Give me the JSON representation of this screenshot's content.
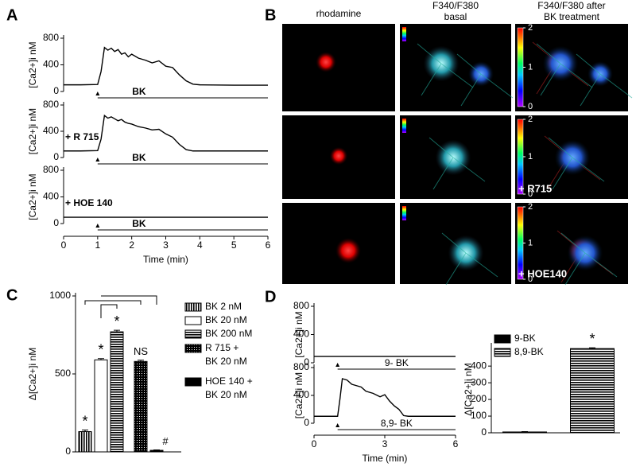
{
  "chart_data": [
    {
      "type": "line",
      "panel_label": "A",
      "ylabel": "[Ca2+]i nM",
      "xlim": [
        0,
        6
      ],
      "ylim": [
        0,
        800
      ],
      "yticks": [
        0,
        400,
        800
      ],
      "color": "#000000",
      "x": [
        0,
        0.5,
        1.0,
        1.1,
        1.2,
        1.3,
        1.4,
        1.5,
        1.6,
        1.7,
        1.8,
        1.9,
        2.0,
        2.2,
        2.4,
        2.6,
        2.8,
        3.0,
        3.2,
        3.4,
        3.6,
        3.8,
        4.0,
        5.0,
        6.0
      ],
      "y": [
        100,
        100,
        105,
        300,
        660,
        620,
        650,
        600,
        630,
        560,
        580,
        520,
        560,
        500,
        470,
        430,
        460,
        380,
        360,
        250,
        160,
        110,
        100,
        95,
        95
      ],
      "stimulus": "BK",
      "stimulus_start": 1
    },
    {
      "type": "line",
      "annotation": "+ R 715",
      "ylabel": "[Ca2+]i nM",
      "xlim": [
        0,
        6
      ],
      "ylim": [
        0,
        800
      ],
      "yticks": [
        0,
        400,
        800
      ],
      "color": "#000000",
      "x": [
        0,
        0.5,
        1.0,
        1.1,
        1.2,
        1.3,
        1.4,
        1.5,
        1.6,
        1.7,
        1.8,
        1.9,
        2.0,
        2.2,
        2.4,
        2.6,
        2.8,
        3.0,
        3.2,
        3.4,
        3.6,
        3.8,
        4.0,
        5.0,
        6.0
      ],
      "y": [
        100,
        100,
        105,
        280,
        640,
        600,
        620,
        590,
        560,
        580,
        540,
        520,
        510,
        470,
        450,
        420,
        430,
        360,
        310,
        200,
        120,
        100,
        100,
        100,
        100
      ],
      "stimulus": "BK",
      "stimulus_start": 1
    },
    {
      "type": "line",
      "annotation": "+ HOE 140",
      "ylabel": "[Ca2+]i nM",
      "xlabel": "Time (min)",
      "xlim": [
        0,
        6
      ],
      "xticks": [
        0,
        1,
        2,
        3,
        4,
        5,
        6
      ],
      "ylim": [
        0,
        800
      ],
      "yticks": [
        0,
        400,
        800
      ],
      "color": "#000000",
      "x": [
        0,
        1,
        2,
        3,
        4,
        5,
        6
      ],
      "y": [
        95,
        95,
        95,
        95,
        95,
        95,
        95
      ],
      "stimulus": "BK",
      "stimulus_start": 1
    },
    {
      "type": "image_grid",
      "panel_label": "B",
      "column_titles": [
        [
          "rhodamine"
        ],
        [
          "F340/F380",
          "basal"
        ],
        [
          "F340/F380 after",
          "BK treatment"
        ]
      ],
      "row_labels": [
        "+ R715",
        "+ HOE140"
      ],
      "colorbar": {
        "lim": [
          0,
          2
        ],
        "ticks": [
          0,
          1,
          2
        ]
      }
    },
    {
      "type": "bar",
      "panel_label": "C",
      "ylabel": "Δ[Ca2+]i nM",
      "ylim": [
        0,
        1000
      ],
      "yticks": [
        0,
        500,
        1000
      ],
      "categories": [
        "BK 2 nM",
        "BK 20 nM",
        "BK 200 nM",
        "R 715 + BK 20 nM",
        "HOE 140 + BK 20 nM"
      ],
      "values": [
        130,
        590,
        770,
        580,
        10
      ],
      "errors": [
        10,
        8,
        10,
        8,
        3
      ],
      "fills": [
        "vstripes",
        "white",
        "hstripes",
        "dots",
        "black"
      ],
      "bar_labels": [
        "*",
        "*",
        "*",
        "NS",
        "#"
      ]
    },
    {
      "type": "line",
      "panel_label": "D",
      "ylabel": "[Ca2+]i nM",
      "xlim": [
        0,
        6
      ],
      "ylim": [
        0,
        800
      ],
      "yticks": [
        0,
        400,
        800
      ],
      "color": "#000000",
      "x": [
        0,
        1,
        2,
        3,
        4,
        5,
        6
      ],
      "y": [
        90,
        90,
        90,
        90,
        90,
        90,
        90
      ],
      "stimulus": "9- BK",
      "stimulus_start": 1
    },
    {
      "type": "line",
      "ylabel": "[Ca2+]i nM",
      "xlabel": "Time (min)",
      "xlim": [
        0,
        6
      ],
      "xticks": [
        0,
        3,
        6
      ],
      "ylim": [
        0,
        800
      ],
      "yticks": [
        0,
        400,
        800
      ],
      "color": "#000000",
      "x": [
        0,
        1.0,
        1.1,
        1.2,
        1.4,
        1.6,
        1.8,
        2.0,
        2.2,
        2.5,
        2.8,
        3.0,
        3.2,
        3.4,
        3.6,
        3.8,
        4.0,
        4.5,
        5,
        6
      ],
      "y": [
        100,
        100,
        350,
        640,
        620,
        560,
        540,
        520,
        460,
        430,
        380,
        410,
        320,
        250,
        200,
        110,
        100,
        100,
        100,
        100
      ],
      "stimulus": "8,9- BK",
      "stimulus_start": 1
    },
    {
      "type": "bar",
      "ylabel": "Δ[Ca2+]i nM",
      "ylim": [
        0,
        520
      ],
      "yticks": [
        0,
        100,
        200,
        300,
        400
      ],
      "categories": [
        "9-BK",
        "8,9-BK"
      ],
      "values": [
        5,
        505
      ],
      "errors": [
        2,
        5
      ],
      "fills": [
        "black",
        "hstripes"
      ],
      "bar_labels": [
        null,
        "*"
      ]
    }
  ]
}
